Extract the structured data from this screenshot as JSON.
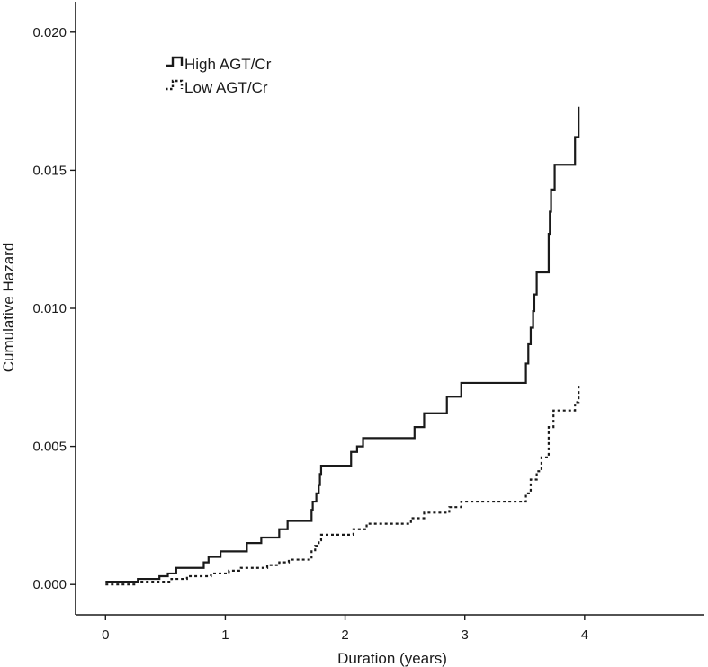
{
  "chart_data": {
    "type": "line",
    "subtype": "step",
    "title": "",
    "xlabel": "Duration (years)",
    "ylabel": "Cumulative Hazard",
    "xlim": [
      -0.25,
      5.0
    ],
    "ylim": [
      -0.0011,
      0.0211
    ],
    "x_ticks": [
      {
        "value": 0,
        "label": "0"
      },
      {
        "value": 1,
        "label": "1"
      },
      {
        "value": 2,
        "label": "2"
      },
      {
        "value": 3,
        "label": "3"
      },
      {
        "value": 4,
        "label": "4"
      }
    ],
    "y_ticks": [
      {
        "value": 0.0,
        "label": "0.000"
      },
      {
        "value": 0.005,
        "label": "0.005"
      },
      {
        "value": 0.01,
        "label": "0.010"
      },
      {
        "value": 0.015,
        "label": "0.015"
      },
      {
        "value": 0.02,
        "label": "0.020"
      }
    ],
    "grid": false,
    "legend_position": "top-left",
    "series": [
      {
        "name": "High AGT/Cr",
        "style": "solid",
        "color": "#1a1a1a",
        "x": [
          0.0,
          0.27,
          0.45,
          0.52,
          0.59,
          0.82,
          0.86,
          0.96,
          1.18,
          1.3,
          1.45,
          1.52,
          1.72,
          1.73,
          1.76,
          1.78,
          1.79,
          1.8,
          2.05,
          2.1,
          2.15,
          2.58,
          2.66,
          2.85,
          2.97,
          3.51,
          3.53,
          3.55,
          3.57,
          3.58,
          3.6,
          3.62,
          3.7,
          3.71,
          3.72,
          3.75,
          3.92,
          3.95
        ],
        "y": [
          0.0001,
          0.0002,
          0.0003,
          0.0004,
          0.0006,
          0.0008,
          0.001,
          0.0012,
          0.0015,
          0.0017,
          0.002,
          0.0023,
          0.0027,
          0.003,
          0.0033,
          0.0036,
          0.004,
          0.0043,
          0.0048,
          0.005,
          0.0053,
          0.0057,
          0.0062,
          0.0068,
          0.0073,
          0.008,
          0.0087,
          0.0093,
          0.0099,
          0.0105,
          0.0113,
          0.0113,
          0.0127,
          0.0135,
          0.0143,
          0.0152,
          0.0162,
          0.0173
        ]
      },
      {
        "name": "Low AGT/Cr",
        "style": "dotted",
        "color": "#1a1a1a",
        "x": [
          0.0,
          0.25,
          0.55,
          0.68,
          0.88,
          1.03,
          1.13,
          1.35,
          1.45,
          1.53,
          1.72,
          1.75,
          1.78,
          1.8,
          2.07,
          2.18,
          2.55,
          2.66,
          2.87,
          2.97,
          3.51,
          3.55,
          3.6,
          3.64,
          3.7,
          3.74,
          3.92,
          3.95
        ],
        "y": [
          0.0,
          0.0001,
          0.0002,
          0.0003,
          0.0004,
          0.0005,
          0.0006,
          0.0007,
          0.0008,
          0.0009,
          0.0012,
          0.0014,
          0.0016,
          0.0018,
          0.002,
          0.0022,
          0.0024,
          0.0026,
          0.0028,
          0.003,
          0.0033,
          0.0038,
          0.0041,
          0.0046,
          0.0057,
          0.0063,
          0.0066,
          0.0072
        ]
      }
    ]
  }
}
